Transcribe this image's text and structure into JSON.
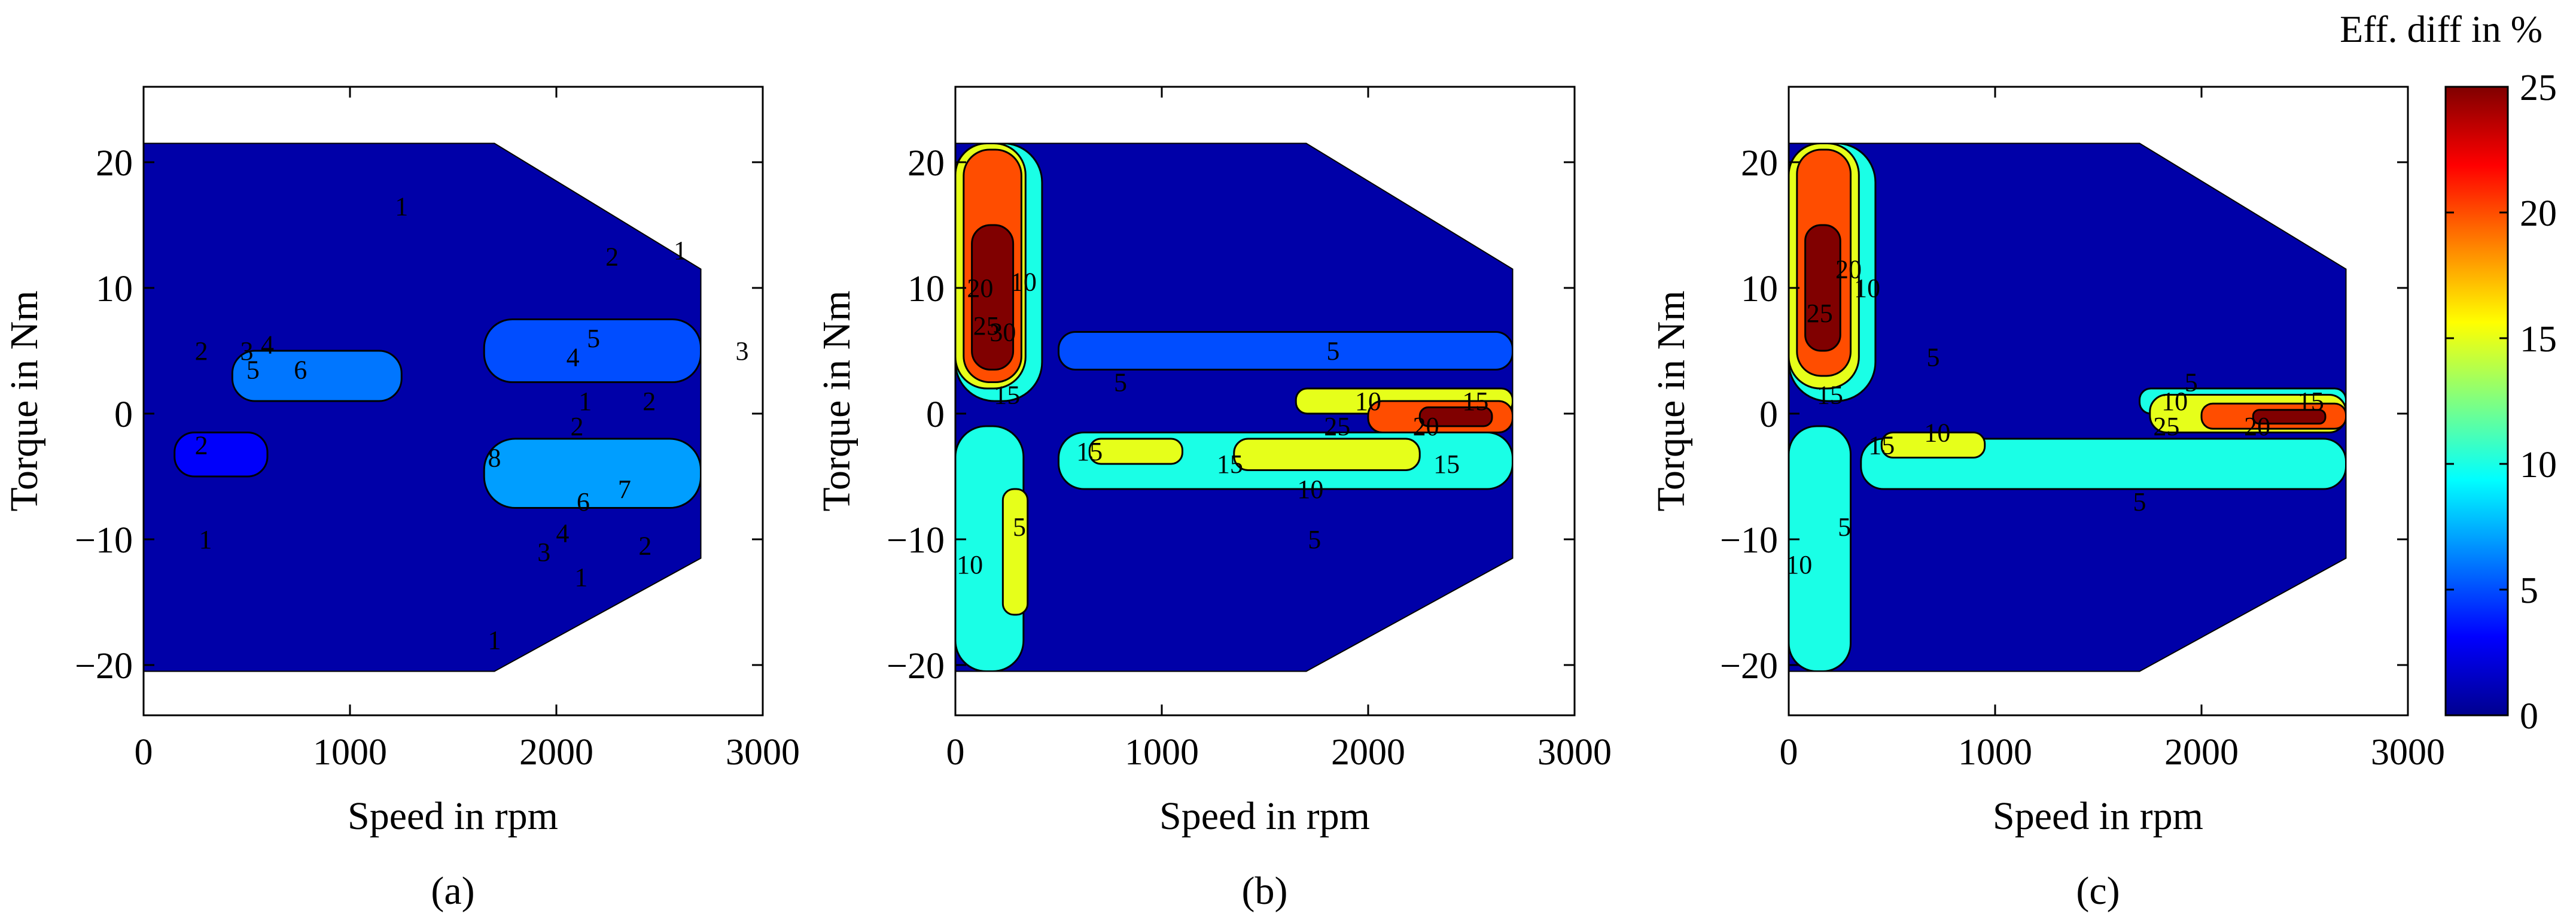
{
  "colors": {
    "background": "#ffffff",
    "axes": "#000000",
    "colormap": [
      "#00008f",
      "#0000ff",
      "#0080ff",
      "#00ffff",
      "#80ff80",
      "#ffff00",
      "#ff8000",
      "#ff0000",
      "#800000"
    ]
  },
  "colorbar": {
    "title": "Eff. diff in %",
    "min": 0,
    "max": 25,
    "ticks": [
      "25",
      "20",
      "15",
      "10",
      "5",
      "0"
    ]
  },
  "chart_data": [
    {
      "type": "contour",
      "caption": "(a)",
      "xlabel": "Speed in rpm",
      "ylabel": "Torque in Nm",
      "xlim": [
        0,
        3000
      ],
      "ylim": [
        -24,
        26
      ],
      "xticks": [
        "0",
        "1000",
        "2000",
        "3000"
      ],
      "yticks": [
        "20",
        "10",
        "0",
        "−10",
        "−20"
      ],
      "operating_region": {
        "torque_max": 21.5,
        "torque_min": -20.5,
        "corner_speed": 1700,
        "max_speed": 2700,
        "torque_at_max_speed": 11.5
      },
      "regions": [
        {
          "level": 5,
          "speed": [
            1650,
            2700
          ],
          "torque": [
            2.5,
            7.5
          ]
        },
        {
          "level": 6,
          "speed": [
            430,
            1250
          ],
          "torque": [
            1,
            5
          ]
        },
        {
          "level": 7,
          "speed": [
            1650,
            2700
          ],
          "torque": [
            -7.5,
            -2
          ]
        },
        {
          "level": 3,
          "speed": [
            150,
            600
          ],
          "torque": [
            -5,
            -1.5
          ]
        }
      ],
      "contour_labels": [
        {
          "text": "1",
          "speed": 1250,
          "torque": 16.5
        },
        {
          "text": "1",
          "speed": 2600,
          "torque": 13
        },
        {
          "text": "2",
          "speed": 2270,
          "torque": 12.5
        },
        {
          "text": "2",
          "speed": 280,
          "torque": 5
        },
        {
          "text": "3",
          "speed": 2900,
          "torque": 5
        },
        {
          "text": "3",
          "speed": 500,
          "torque": 5
        },
        {
          "text": "4",
          "speed": 2080,
          "torque": 4.5
        },
        {
          "text": "4",
          "speed": 600,
          "torque": 5.5
        },
        {
          "text": "5",
          "speed": 2180,
          "torque": 6
        },
        {
          "text": "5",
          "speed": 530,
          "torque": 3.5
        },
        {
          "text": "6",
          "speed": 760,
          "torque": 3.5
        },
        {
          "text": "1",
          "speed": 2140,
          "torque": 1
        },
        {
          "text": "2",
          "speed": 2450,
          "torque": 1
        },
        {
          "text": "2",
          "speed": 2100,
          "torque": -1
        },
        {
          "text": "2",
          "speed": 280,
          "torque": -2.5
        },
        {
          "text": "8",
          "speed": 1700,
          "torque": -3.5
        },
        {
          "text": "6",
          "speed": 2130,
          "torque": -7
        },
        {
          "text": "7",
          "speed": 2330,
          "torque": -6
        },
        {
          "text": "4",
          "speed": 2030,
          "torque": -9.5
        },
        {
          "text": "3",
          "speed": 1940,
          "torque": -11
        },
        {
          "text": "2",
          "speed": 2430,
          "torque": -10.5
        },
        {
          "text": "1",
          "speed": 2120,
          "torque": -13
        },
        {
          "text": "1",
          "speed": 1700,
          "torque": -18
        },
        {
          "text": "1",
          "speed": 300,
          "torque": -10
        }
      ]
    },
    {
      "type": "contour",
      "caption": "(b)",
      "xlabel": "Speed in rpm",
      "ylabel": "Torque in Nm",
      "xlim": [
        0,
        3000
      ],
      "ylim": [
        -24,
        26
      ],
      "xticks": [
        "0",
        "1000",
        "2000",
        "3000"
      ],
      "yticks": [
        "20",
        "10",
        "0",
        "−10",
        "−20"
      ],
      "operating_region": {
        "torque_max": 21.5,
        "torque_min": -20.5,
        "corner_speed": 1700,
        "max_speed": 2700,
        "torque_at_max_speed": 11.5
      },
      "regions": [
        {
          "level": 5,
          "speed": [
            500,
            2700
          ],
          "torque": [
            3.5,
            6.5
          ]
        },
        {
          "level": 10,
          "speed": [
            500,
            2700
          ],
          "torque": [
            -6,
            -1.5
          ]
        },
        {
          "level": 15,
          "speed": [
            650,
            1100
          ],
          "torque": [
            -4,
            -2
          ]
        },
        {
          "level": 15,
          "speed": [
            1350,
            2250
          ],
          "torque": [
            -4.5,
            -2
          ]
        },
        {
          "level": 10,
          "speed": [
            0,
            330
          ],
          "torque": [
            -20.5,
            -1
          ]
        },
        {
          "level": 15,
          "speed": [
            230,
            350
          ],
          "torque": [
            -16,
            -6
          ]
        },
        {
          "level": 15,
          "speed": [
            1650,
            2700
          ],
          "torque": [
            0,
            2
          ]
        },
        {
          "level": 20,
          "speed": [
            2000,
            2700
          ],
          "torque": [
            -1.5,
            1
          ]
        },
        {
          "level": 25,
          "speed": [
            2250,
            2600
          ],
          "torque": [
            -1,
            0.5
          ]
        },
        {
          "level": 10,
          "speed": [
            0,
            420
          ],
          "torque": [
            1,
            21.5
          ]
        },
        {
          "level": 15,
          "speed": [
            0,
            340
          ],
          "torque": [
            2,
            21.5
          ]
        },
        {
          "level": 20,
          "speed": [
            40,
            320
          ],
          "torque": [
            2.5,
            21
          ]
        },
        {
          "level": 25,
          "speed": [
            80,
            280
          ],
          "torque": [
            3.5,
            15
          ]
        }
      ],
      "contour_labels": [
        {
          "text": "10",
          "speed": 330,
          "torque": 10.5
        },
        {
          "text": "20",
          "speed": 120,
          "torque": 10
        },
        {
          "text": "25",
          "speed": 150,
          "torque": 7
        },
        {
          "text": "30",
          "speed": 230,
          "torque": 6.5
        },
        {
          "text": "15",
          "speed": 250,
          "torque": 1.5
        },
        {
          "text": "5",
          "speed": 800,
          "torque": 2.5
        },
        {
          "text": "5",
          "speed": 1830,
          "torque": 5
        },
        {
          "text": "10",
          "speed": 2000,
          "torque": 1
        },
        {
          "text": "15",
          "speed": 2520,
          "torque": 1
        },
        {
          "text": "20",
          "speed": 2280,
          "torque": -1
        },
        {
          "text": "25",
          "speed": 1850,
          "torque": -1
        },
        {
          "text": "15",
          "speed": 650,
          "torque": -3
        },
        {
          "text": "15",
          "speed": 1330,
          "torque": -4
        },
        {
          "text": "15",
          "speed": 2380,
          "torque": -4
        },
        {
          "text": "10",
          "speed": 1720,
          "torque": -6
        },
        {
          "text": "5",
          "speed": 1740,
          "torque": -10
        },
        {
          "text": "10",
          "speed": 70,
          "torque": -12
        },
        {
          "text": "5",
          "speed": 310,
          "torque": -9
        }
      ]
    },
    {
      "type": "contour",
      "caption": "(c)",
      "xlabel": "Speed in rpm",
      "ylabel": "Torque in Nm",
      "xlim": [
        0,
        3000
      ],
      "ylim": [
        -24,
        26
      ],
      "xticks": [
        "0",
        "1000",
        "2000",
        "3000"
      ],
      "yticks": [
        "20",
        "10",
        "0",
        "−10",
        "−20"
      ],
      "operating_region": {
        "torque_max": 21.5,
        "torque_min": -20.5,
        "corner_speed": 1700,
        "max_speed": 2700,
        "torque_at_max_speed": 11.5
      },
      "regions": [
        {
          "level": 10,
          "speed": [
            350,
            2700
          ],
          "torque": [
            -6,
            -2
          ]
        },
        {
          "level": 15,
          "speed": [
            450,
            950
          ],
          "torque": [
            -3.5,
            -1.5
          ]
        },
        {
          "level": 10,
          "speed": [
            0,
            300
          ],
          "torque": [
            -20.5,
            -1
          ]
        },
        {
          "level": 10,
          "speed": [
            1700,
            2700
          ],
          "torque": [
            0,
            2
          ]
        },
        {
          "level": 15,
          "speed": [
            1750,
            2700
          ],
          "torque": [
            -1.5,
            1.5
          ]
        },
        {
          "level": 20,
          "speed": [
            2000,
            2700
          ],
          "torque": [
            -1.2,
            0.8
          ]
        },
        {
          "level": 25,
          "speed": [
            2250,
            2600
          ],
          "torque": [
            -0.8,
            0.3
          ]
        },
        {
          "level": 10,
          "speed": [
            0,
            420
          ],
          "torque": [
            1,
            21.5
          ]
        },
        {
          "level": 15,
          "speed": [
            0,
            340
          ],
          "torque": [
            2,
            21.5
          ]
        },
        {
          "level": 20,
          "speed": [
            40,
            300
          ],
          "torque": [
            3,
            21
          ]
        },
        {
          "level": 25,
          "speed": [
            80,
            250
          ],
          "torque": [
            5,
            15
          ]
        }
      ],
      "contour_labels": [
        {
          "text": "20",
          "speed": 290,
          "torque": 11.5
        },
        {
          "text": "10",
          "speed": 380,
          "torque": 10
        },
        {
          "text": "25",
          "speed": 150,
          "torque": 8
        },
        {
          "text": "15",
          "speed": 200,
          "torque": 1.5
        },
        {
          "text": "5",
          "speed": 700,
          "torque": 4.5
        },
        {
          "text": "5",
          "speed": 1950,
          "torque": 2.5
        },
        {
          "text": "10",
          "speed": 1870,
          "torque": 1
        },
        {
          "text": "15",
          "speed": 2530,
          "torque": 1
        },
        {
          "text": "20",
          "speed": 2270,
          "torque": -1
        },
        {
          "text": "25",
          "speed": 1830,
          "torque": -1
        },
        {
          "text": "15",
          "speed": 450,
          "torque": -2.5
        },
        {
          "text": "10",
          "speed": 720,
          "torque": -1.5
        },
        {
          "text": "5",
          "speed": 1700,
          "torque": -7
        },
        {
          "text": "10",
          "speed": 50,
          "torque": -12
        },
        {
          "text": "5",
          "speed": 270,
          "torque": -9
        }
      ]
    }
  ]
}
